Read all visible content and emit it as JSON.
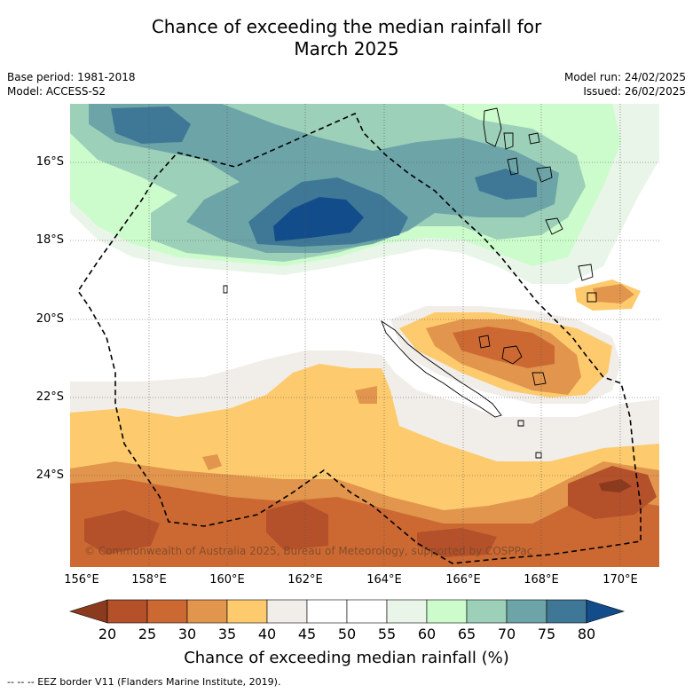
{
  "title": {
    "line1": "Chance of exceeding the median rainfall for",
    "line2": "March 2025"
  },
  "meta_left": {
    "base_period": "Base period: 1981-2018",
    "model": "Model: ACCESS-S2"
  },
  "meta_right": {
    "model_run": "Model run: 24/02/2025",
    "issued": "Issued: 26/02/2025"
  },
  "axes": {
    "lon_labels": [
      "156°E",
      "158°E",
      "160°E",
      "162°E",
      "164°E",
      "166°E",
      "168°E",
      "170°E"
    ],
    "lat_labels": [
      "16°S",
      "18°S",
      "20°S",
      "22°S",
      "24°S"
    ]
  },
  "copyright": "© Commonwealth of Australia 2025, Bureau of Meteorology, supported by COSPPac",
  "colorbar": {
    "ticks": [
      "20",
      "25",
      "30",
      "35",
      "40",
      "45",
      "50",
      "55",
      "60",
      "65",
      "70",
      "75",
      "80"
    ],
    "colors": [
      "#8b3a1e",
      "#b4502a",
      "#cc6933",
      "#e2954c",
      "#fdcb6e",
      "#f1ede8",
      "#ffffff",
      "#ffffff",
      "#e9f5e9",
      "#ccfccc",
      "#9dd0b8",
      "#6ca4a8",
      "#3f7896",
      "#124c8b"
    ],
    "label": "Chance of exceeding median rainfall (%)"
  },
  "footnote": "-- -- -- EEZ border V11 (Flanders Marine Institute, 2019)."
}
